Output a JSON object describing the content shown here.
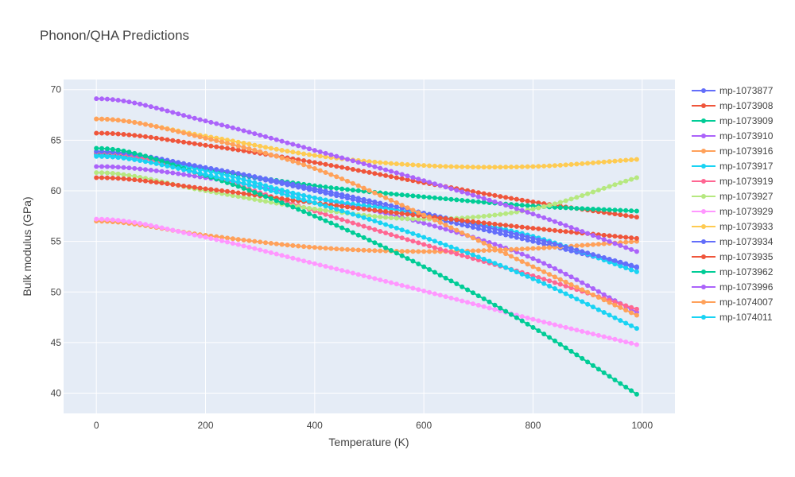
{
  "chart_data": {
    "type": "line",
    "title": "Phonon/QHA Predictions",
    "xlabel": "Temperature (K)",
    "ylabel": "Bulk modulus (GPa)",
    "xlim": [
      -60,
      1060
    ],
    "ylim": [
      38,
      71
    ],
    "x_ticks": [
      0,
      200,
      400,
      600,
      800,
      1000
    ],
    "y_ticks": [
      40,
      45,
      50,
      55,
      60,
      65,
      70
    ],
    "grid": true,
    "legend_position": "right",
    "x_start": 0,
    "x_step": 10,
    "n_points": 100,
    "series": [
      {
        "name": "mp-1073877",
        "color": "#636efa",
        "values": [
          [
            0,
            63.7
          ],
          [
            200,
            62.2
          ],
          [
            400,
            60.0
          ],
          [
            600,
            57.5
          ],
          [
            800,
            55.0
          ],
          [
            990,
            52.4
          ]
        ]
      },
      {
        "name": "mp-1073908",
        "color": "#EF553B",
        "values": [
          [
            0,
            65.7
          ],
          [
            200,
            64.5
          ],
          [
            400,
            62.8
          ],
          [
            600,
            60.8
          ],
          [
            800,
            58.9
          ],
          [
            990,
            57.4
          ]
        ]
      },
      {
        "name": "mp-1073909",
        "color": "#00cc96",
        "values": [
          [
            0,
            63.6
          ],
          [
            200,
            62.1
          ],
          [
            400,
            60.5
          ],
          [
            600,
            59.4
          ],
          [
            800,
            58.5
          ],
          [
            990,
            58.0
          ]
        ]
      },
      {
        "name": "mp-1073910",
        "color": "#ab63fa",
        "values": [
          [
            0,
            62.4
          ],
          [
            200,
            61.3
          ],
          [
            400,
            59.3
          ],
          [
            600,
            56.8
          ],
          [
            800,
            53.3
          ],
          [
            990,
            48.0
          ]
        ]
      },
      {
        "name": "mp-1073916",
        "color": "#FFA15A",
        "values": [
          [
            0,
            57.0
          ],
          [
            200,
            55.6
          ],
          [
            400,
            54.4
          ],
          [
            600,
            54.0
          ],
          [
            800,
            54.3
          ],
          [
            990,
            55.0
          ]
        ]
      },
      {
        "name": "mp-1073917",
        "color": "#19d3f3",
        "values": [
          [
            0,
            63.5
          ],
          [
            200,
            62.0
          ],
          [
            400,
            59.3
          ],
          [
            600,
            57.7
          ],
          [
            800,
            55.5
          ],
          [
            990,
            52.0
          ]
        ]
      },
      {
        "name": "mp-1073919",
        "color": "#FF6692",
        "values": [
          [
            0,
            63.8
          ],
          [
            200,
            61.5
          ],
          [
            400,
            58.0
          ],
          [
            600,
            54.7
          ],
          [
            800,
            51.6
          ],
          [
            990,
            48.3
          ]
        ]
      },
      {
        "name": "mp-1073927",
        "color": "#B6E880",
        "values": [
          [
            0,
            61.8
          ],
          [
            200,
            60.0
          ],
          [
            400,
            58.2
          ],
          [
            600,
            57.2
          ],
          [
            800,
            58.2
          ],
          [
            990,
            61.3
          ]
        ]
      },
      {
        "name": "mp-1073929",
        "color": "#FF97FF",
        "values": [
          [
            0,
            57.2
          ],
          [
            200,
            55.4
          ],
          [
            400,
            52.8
          ],
          [
            600,
            50.1
          ],
          [
            800,
            47.3
          ],
          [
            990,
            44.8
          ]
        ]
      },
      {
        "name": "mp-1073933",
        "color": "#FECB52",
        "values": [
          [
            0,
            67.1
          ],
          [
            200,
            65.4
          ],
          [
            400,
            63.5
          ],
          [
            600,
            62.5
          ],
          [
            800,
            62.4
          ],
          [
            990,
            63.1
          ]
        ]
      },
      {
        "name": "mp-1073934",
        "color": "#636efa",
        "values": [
          [
            0,
            63.9
          ],
          [
            200,
            62.3
          ],
          [
            400,
            60.2
          ],
          [
            600,
            57.8
          ],
          [
            800,
            55.3
          ],
          [
            990,
            52.5
          ]
        ]
      },
      {
        "name": "mp-1073935",
        "color": "#EF553B",
        "values": [
          [
            0,
            61.3
          ],
          [
            200,
            60.2
          ],
          [
            400,
            58.8
          ],
          [
            600,
            57.5
          ],
          [
            800,
            56.3
          ],
          [
            990,
            55.3
          ]
        ]
      },
      {
        "name": "mp-1073962",
        "color": "#00cc96",
        "values": [
          [
            0,
            64.2
          ],
          [
            200,
            61.5
          ],
          [
            400,
            57.5
          ],
          [
            600,
            52.5
          ],
          [
            800,
            46.5
          ],
          [
            990,
            39.9
          ]
        ]
      },
      {
        "name": "mp-1073996",
        "color": "#ab63fa",
        "values": [
          [
            0,
            69.1
          ],
          [
            200,
            66.9
          ],
          [
            400,
            64.0
          ],
          [
            600,
            61.0
          ],
          [
            800,
            57.7
          ],
          [
            990,
            54.0
          ]
        ]
      },
      {
        "name": "mp-1074007",
        "color": "#FFA15A",
        "values": [
          [
            0,
            67.1
          ],
          [
            200,
            65.2
          ],
          [
            400,
            62.2
          ],
          [
            600,
            57.6
          ],
          [
            800,
            52.5
          ],
          [
            990,
            47.7
          ]
        ]
      },
      {
        "name": "mp-1074011",
        "color": "#19d3f3",
        "values": [
          [
            0,
            63.4
          ],
          [
            200,
            61.6
          ],
          [
            400,
            58.8
          ],
          [
            600,
            55.4
          ],
          [
            800,
            51.3
          ],
          [
            990,
            46.4
          ]
        ]
      }
    ]
  }
}
